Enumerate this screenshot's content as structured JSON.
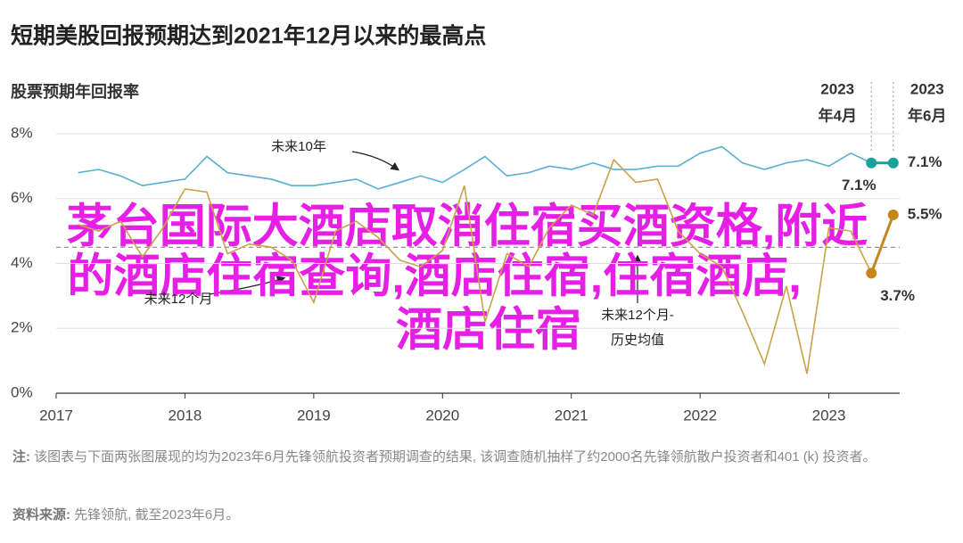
{
  "chart_data": {
    "type": "line",
    "title": "短期美股回报预期达到2021年12月以来的最高点",
    "y_label": "股票预期年回报率",
    "xlim": [
      2017,
      2023.55
    ],
    "xticks": [
      2017,
      2018,
      2019,
      2020,
      2021,
      2022,
      2023
    ],
    "ylim": [
      0,
      8
    ],
    "yticks": [
      {
        "value": 0,
        "label": "0%"
      },
      {
        "value": 2,
        "label": "2%"
      },
      {
        "value": 4,
        "label": "4%"
      },
      {
        "value": 6,
        "label": "6%"
      },
      {
        "value": 8,
        "label": "8%"
      }
    ],
    "grid": true,
    "x": [
      2017.17,
      2017.33,
      2017.5,
      2017.67,
      2017.83,
      2018.0,
      2018.17,
      2018.33,
      2018.5,
      2018.67,
      2018.83,
      2019.0,
      2019.17,
      2019.33,
      2019.5,
      2019.67,
      2019.83,
      2020.0,
      2020.17,
      2020.33,
      2020.5,
      2020.67,
      2020.83,
      2021.0,
      2021.17,
      2021.33,
      2021.5,
      2021.67,
      2021.83,
      2022.0,
      2022.17,
      2022.33,
      2022.5,
      2022.67,
      2022.83,
      2023.0,
      2023.17,
      2023.33,
      2023.5
    ],
    "highlight_headers": [
      [
        "2023",
        "年4月"
      ],
      [
        "2023",
        "年6月"
      ]
    ],
    "series": [
      {
        "name": "未来10年",
        "color": "#5aaed2",
        "highlight_color": "#17a39a",
        "values": [
          6.8,
          6.9,
          6.7,
          6.4,
          6.5,
          6.6,
          7.3,
          6.8,
          6.7,
          6.6,
          6.4,
          6.4,
          6.5,
          6.6,
          6.3,
          6.5,
          6.7,
          6.5,
          6.9,
          7.3,
          6.7,
          6.8,
          7.0,
          6.9,
          7.1,
          6.9,
          6.9,
          7.0,
          7.0,
          7.4,
          7.6,
          7.1,
          6.9,
          7.1,
          7.2,
          7.0,
          7.4,
          7.1,
          7.1
        ],
        "value_labels": [
          null,
          null,
          null,
          null,
          null,
          null,
          null,
          null,
          null,
          null,
          null,
          null,
          null,
          null,
          null,
          null,
          null,
          null,
          null,
          null,
          null,
          null,
          null,
          null,
          null,
          null,
          null,
          null,
          null,
          null,
          null,
          null,
          null,
          null,
          null,
          null,
          null,
          "7.1%",
          "7.1%"
        ]
      },
      {
        "name": "未来12个月",
        "color": "#c9a14a",
        "highlight_color": "#c6861c",
        "values": [
          5.2,
          5.0,
          5.3,
          4.2,
          5.1,
          6.3,
          6.2,
          4.3,
          4.6,
          4.5,
          4.1,
          2.8,
          5.0,
          5.3,
          4.8,
          4.1,
          3.9,
          4.4,
          6.4,
          2.2,
          4.3,
          3.9,
          5.1,
          5.8,
          5.5,
          7.2,
          6.5,
          6.6,
          5.0,
          4.3,
          3.9,
          2.5,
          0.9,
          3.3,
          0.6,
          5.1,
          5.0,
          3.7,
          5.5
        ],
        "value_labels": [
          null,
          null,
          null,
          null,
          null,
          null,
          null,
          null,
          null,
          null,
          null,
          null,
          null,
          null,
          null,
          null,
          null,
          null,
          null,
          null,
          null,
          null,
          null,
          null,
          null,
          null,
          null,
          null,
          null,
          null,
          null,
          null,
          null,
          null,
          null,
          null,
          null,
          "3.7%",
          "5.5%"
        ]
      }
    ],
    "reference_line": {
      "value": 4.5,
      "label": [
        "未来12个月-",
        "历史均值"
      ]
    },
    "note_label": "注:",
    "note": "该图表与下面两张图展现的均为2023年6月先锋领航投资者预期调查的结果, 该调查随机抽样了约2000名先锋领航散户投资者和401 (k) 投资者。",
    "source_label": "资料来源:",
    "source": "先锋领航, 截至2023年6月。"
  },
  "overlay": [
    "茅台国际大酒店取消住宿买酒资格,附近",
    "的酒店住宿查询,酒店住宿,住宿酒店,",
    "酒店住宿"
  ]
}
